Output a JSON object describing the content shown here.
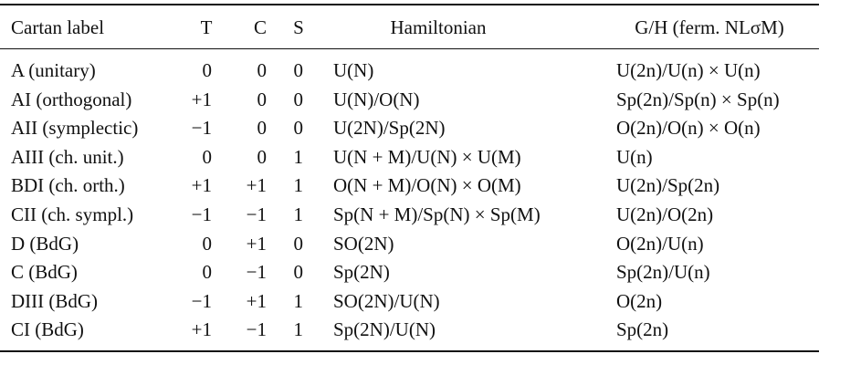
{
  "table": {
    "header": [
      "Cartan label",
      "T",
      "C",
      "S",
      "Hamiltonian",
      "G/H (ferm. NLσM)"
    ],
    "rows": [
      [
        "A (unitary)",
        "0",
        "0",
        "0",
        "U(N)",
        "U(2n)/U(n) × U(n)"
      ],
      [
        "AI (orthogonal)",
        "+1",
        "0",
        "0",
        "U(N)/O(N)",
        "Sp(2n)/Sp(n) × Sp(n)"
      ],
      [
        "AII (symplectic)",
        "−1",
        "0",
        "0",
        "U(2N)/Sp(2N)",
        "O(2n)/O(n) × O(n)"
      ],
      [
        "AIII (ch. unit.)",
        "0",
        "0",
        "1",
        "U(N + M)/U(N) × U(M)",
        "U(n)"
      ],
      [
        "BDI (ch. orth.)",
        "+1",
        "+1",
        "1",
        "O(N + M)/O(N) × O(M)",
        "U(2n)/Sp(2n)"
      ],
      [
        "CII (ch. sympl.)",
        "−1",
        "−1",
        "1",
        "Sp(N + M)/Sp(N) × Sp(M)",
        "U(2n)/O(2n)"
      ],
      [
        "D (BdG)",
        "0",
        "+1",
        "0",
        "SO(2N)",
        "O(2n)/U(n)"
      ],
      [
        "C (BdG)",
        "0",
        "−1",
        "0",
        "Sp(2N)",
        "Sp(2n)/U(n)"
      ],
      [
        "DIII (BdG)",
        "−1",
        "+1",
        "1",
        "SO(2N)/U(N)",
        "O(2n)"
      ],
      [
        "CI (BdG)",
        "+1",
        "−1",
        "1",
        "Sp(2N)/U(N)",
        "Sp(2n)"
      ]
    ]
  }
}
